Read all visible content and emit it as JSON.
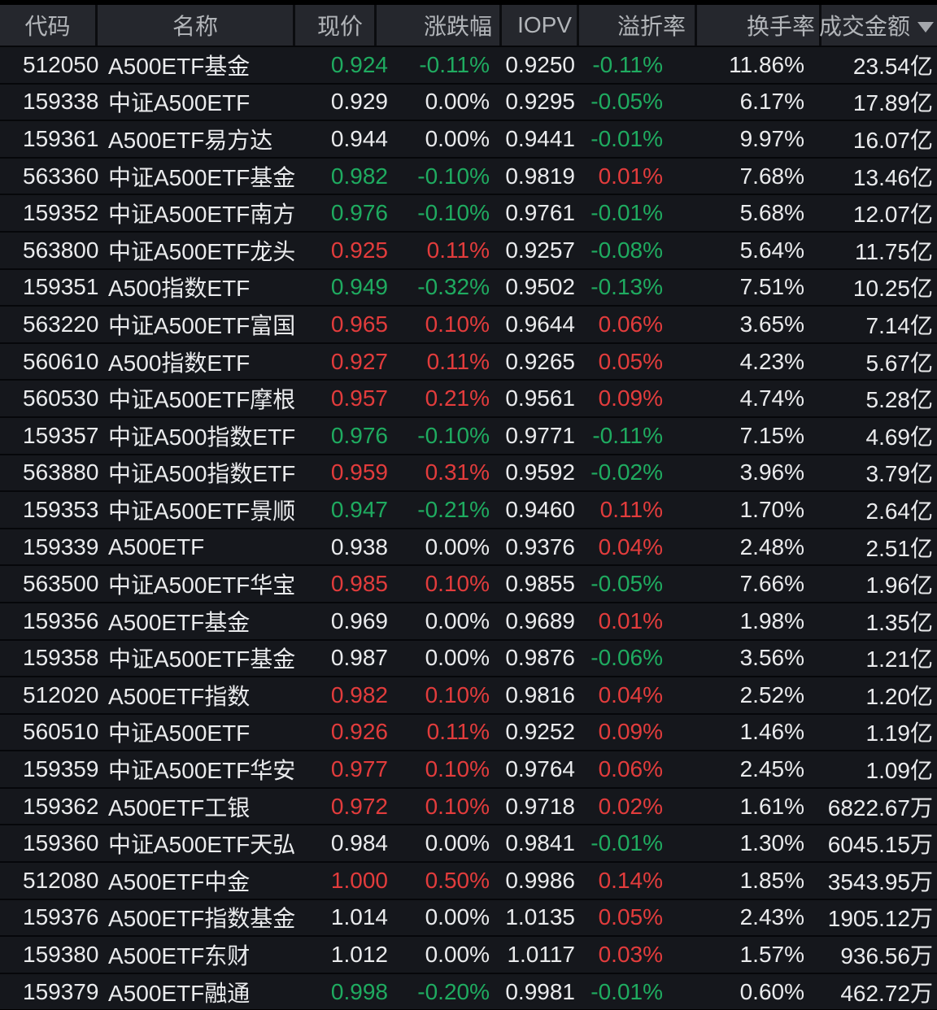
{
  "colors": {
    "up": "#e23c3c",
    "down": "#1fab60",
    "flat": "#eaebed",
    "header_text": "#b2b5b9",
    "header_bg": "#25272d",
    "row_bg": "#15171c"
  },
  "table": {
    "columns": [
      {
        "label": "代码"
      },
      {
        "label": "名称"
      },
      {
        "label": "现价"
      },
      {
        "label": "涨跌幅"
      },
      {
        "label": "IOPV"
      },
      {
        "label": "溢折率"
      },
      {
        "label": "换手率"
      },
      {
        "label": "成交金额",
        "sort_icon": "triangle-down",
        "sort": "desc"
      }
    ],
    "rows": [
      {
        "code": "512050",
        "name": "A500ETF基金",
        "price": "0.924",
        "price_state": "down",
        "change": "-0.11%",
        "change_state": "down",
        "iopv": "0.9250",
        "premium": "-0.11%",
        "premium_state": "down",
        "turnover": "11.86%",
        "amount": "23.54亿"
      },
      {
        "code": "159338",
        "name": "中证A500ETF",
        "price": "0.929",
        "price_state": "flat",
        "change": "0.00%",
        "change_state": "flat",
        "iopv": "0.9295",
        "premium": "-0.05%",
        "premium_state": "down",
        "turnover": "6.17%",
        "amount": "17.89亿"
      },
      {
        "code": "159361",
        "name": "A500ETF易方达",
        "price": "0.944",
        "price_state": "flat",
        "change": "0.00%",
        "change_state": "flat",
        "iopv": "0.9441",
        "premium": "-0.01%",
        "premium_state": "down",
        "turnover": "9.97%",
        "amount": "16.07亿"
      },
      {
        "code": "563360",
        "name": "中证A500ETF基金",
        "price": "0.982",
        "price_state": "down",
        "change": "-0.10%",
        "change_state": "down",
        "iopv": "0.9819",
        "premium": "0.01%",
        "premium_state": "up",
        "turnover": "7.68%",
        "amount": "13.46亿"
      },
      {
        "code": "159352",
        "name": "中证A500ETF南方",
        "price": "0.976",
        "price_state": "down",
        "change": "-0.10%",
        "change_state": "down",
        "iopv": "0.9761",
        "premium": "-0.01%",
        "premium_state": "down",
        "turnover": "5.68%",
        "amount": "12.07亿"
      },
      {
        "code": "563800",
        "name": "中证A500ETF龙头",
        "price": "0.925",
        "price_state": "up",
        "change": "0.11%",
        "change_state": "up",
        "iopv": "0.9257",
        "premium": "-0.08%",
        "premium_state": "down",
        "turnover": "5.64%",
        "amount": "11.75亿"
      },
      {
        "code": "159351",
        "name": "A500指数ETF",
        "price": "0.949",
        "price_state": "down",
        "change": "-0.32%",
        "change_state": "down",
        "iopv": "0.9502",
        "premium": "-0.13%",
        "premium_state": "down",
        "turnover": "7.51%",
        "amount": "10.25亿"
      },
      {
        "code": "563220",
        "name": "中证A500ETF富国",
        "price": "0.965",
        "price_state": "up",
        "change": "0.10%",
        "change_state": "up",
        "iopv": "0.9644",
        "premium": "0.06%",
        "premium_state": "up",
        "turnover": "3.65%",
        "amount": "7.14亿"
      },
      {
        "code": "560610",
        "name": "A500指数ETF",
        "price": "0.927",
        "price_state": "up",
        "change": "0.11%",
        "change_state": "up",
        "iopv": "0.9265",
        "premium": "0.05%",
        "premium_state": "up",
        "turnover": "4.23%",
        "amount": "5.67亿"
      },
      {
        "code": "560530",
        "name": "中证A500ETF摩根",
        "price": "0.957",
        "price_state": "up",
        "change": "0.21%",
        "change_state": "up",
        "iopv": "0.9561",
        "premium": "0.09%",
        "premium_state": "up",
        "turnover": "4.74%",
        "amount": "5.28亿"
      },
      {
        "code": "159357",
        "name": "中证A500指数ETF",
        "price": "0.976",
        "price_state": "down",
        "change": "-0.10%",
        "change_state": "down",
        "iopv": "0.9771",
        "premium": "-0.11%",
        "premium_state": "down",
        "turnover": "7.15%",
        "amount": "4.69亿"
      },
      {
        "code": "563880",
        "name": "中证A500指数ETF",
        "price": "0.959",
        "price_state": "up",
        "change": "0.31%",
        "change_state": "up",
        "iopv": "0.9592",
        "premium": "-0.02%",
        "premium_state": "down",
        "turnover": "3.96%",
        "amount": "3.79亿"
      },
      {
        "code": "159353",
        "name": "中证A500ETF景顺",
        "price": "0.947",
        "price_state": "down",
        "change": "-0.21%",
        "change_state": "down",
        "iopv": "0.9460",
        "premium": "0.11%",
        "premium_state": "up",
        "turnover": "1.70%",
        "amount": "2.64亿"
      },
      {
        "code": "159339",
        "name": "A500ETF",
        "price": "0.938",
        "price_state": "flat",
        "change": "0.00%",
        "change_state": "flat",
        "iopv": "0.9376",
        "premium": "0.04%",
        "premium_state": "up",
        "turnover": "2.48%",
        "amount": "2.51亿"
      },
      {
        "code": "563500",
        "name": "中证A500ETF华宝",
        "price": "0.985",
        "price_state": "up",
        "change": "0.10%",
        "change_state": "up",
        "iopv": "0.9855",
        "premium": "-0.05%",
        "premium_state": "down",
        "turnover": "7.66%",
        "amount": "1.96亿"
      },
      {
        "code": "159356",
        "name": "A500ETF基金",
        "price": "0.969",
        "price_state": "flat",
        "change": "0.00%",
        "change_state": "flat",
        "iopv": "0.9689",
        "premium": "0.01%",
        "premium_state": "up",
        "turnover": "1.98%",
        "amount": "1.35亿"
      },
      {
        "code": "159358",
        "name": "中证A500ETF基金",
        "price": "0.987",
        "price_state": "flat",
        "change": "0.00%",
        "change_state": "flat",
        "iopv": "0.9876",
        "premium": "-0.06%",
        "premium_state": "down",
        "turnover": "3.56%",
        "amount": "1.21亿"
      },
      {
        "code": "512020",
        "name": "A500ETF指数",
        "price": "0.982",
        "price_state": "up",
        "change": "0.10%",
        "change_state": "up",
        "iopv": "0.9816",
        "premium": "0.04%",
        "premium_state": "up",
        "turnover": "2.52%",
        "amount": "1.20亿"
      },
      {
        "code": "560510",
        "name": "中证A500ETF",
        "price": "0.926",
        "price_state": "up",
        "change": "0.11%",
        "change_state": "up",
        "iopv": "0.9252",
        "premium": "0.09%",
        "premium_state": "up",
        "turnover": "1.46%",
        "amount": "1.19亿"
      },
      {
        "code": "159359",
        "name": "中证A500ETF华安",
        "price": "0.977",
        "price_state": "up",
        "change": "0.10%",
        "change_state": "up",
        "iopv": "0.9764",
        "premium": "0.06%",
        "premium_state": "up",
        "turnover": "2.45%",
        "amount": "1.09亿"
      },
      {
        "code": "159362",
        "name": "A500ETF工银",
        "price": "0.972",
        "price_state": "up",
        "change": "0.10%",
        "change_state": "up",
        "iopv": "0.9718",
        "premium": "0.02%",
        "premium_state": "up",
        "turnover": "1.61%",
        "amount": "6822.67万"
      },
      {
        "code": "159360",
        "name": "中证A500ETF天弘",
        "price": "0.984",
        "price_state": "flat",
        "change": "0.00%",
        "change_state": "flat",
        "iopv": "0.9841",
        "premium": "-0.01%",
        "premium_state": "down",
        "turnover": "1.30%",
        "amount": "6045.15万"
      },
      {
        "code": "512080",
        "name": "A500ETF中金",
        "price": "1.000",
        "price_state": "up",
        "change": "0.50%",
        "change_state": "up",
        "iopv": "0.9986",
        "premium": "0.14%",
        "premium_state": "up",
        "turnover": "1.85%",
        "amount": "3543.95万"
      },
      {
        "code": "159376",
        "name": "A500ETF指数基金",
        "price": "1.014",
        "price_state": "flat",
        "change": "0.00%",
        "change_state": "flat",
        "iopv": "1.0135",
        "premium": "0.05%",
        "premium_state": "up",
        "turnover": "2.43%",
        "amount": "1905.12万"
      },
      {
        "code": "159380",
        "name": "A500ETF东财",
        "price": "1.012",
        "price_state": "flat",
        "change": "0.00%",
        "change_state": "flat",
        "iopv": "1.0117",
        "premium": "0.03%",
        "premium_state": "up",
        "turnover": "1.57%",
        "amount": "936.56万"
      },
      {
        "code": "159379",
        "name": "A500ETF融通",
        "price": "0.998",
        "price_state": "down",
        "change": "-0.20%",
        "change_state": "down",
        "iopv": "0.9981",
        "premium": "-0.01%",
        "premium_state": "down",
        "turnover": "0.60%",
        "amount": "462.72万"
      }
    ]
  }
}
